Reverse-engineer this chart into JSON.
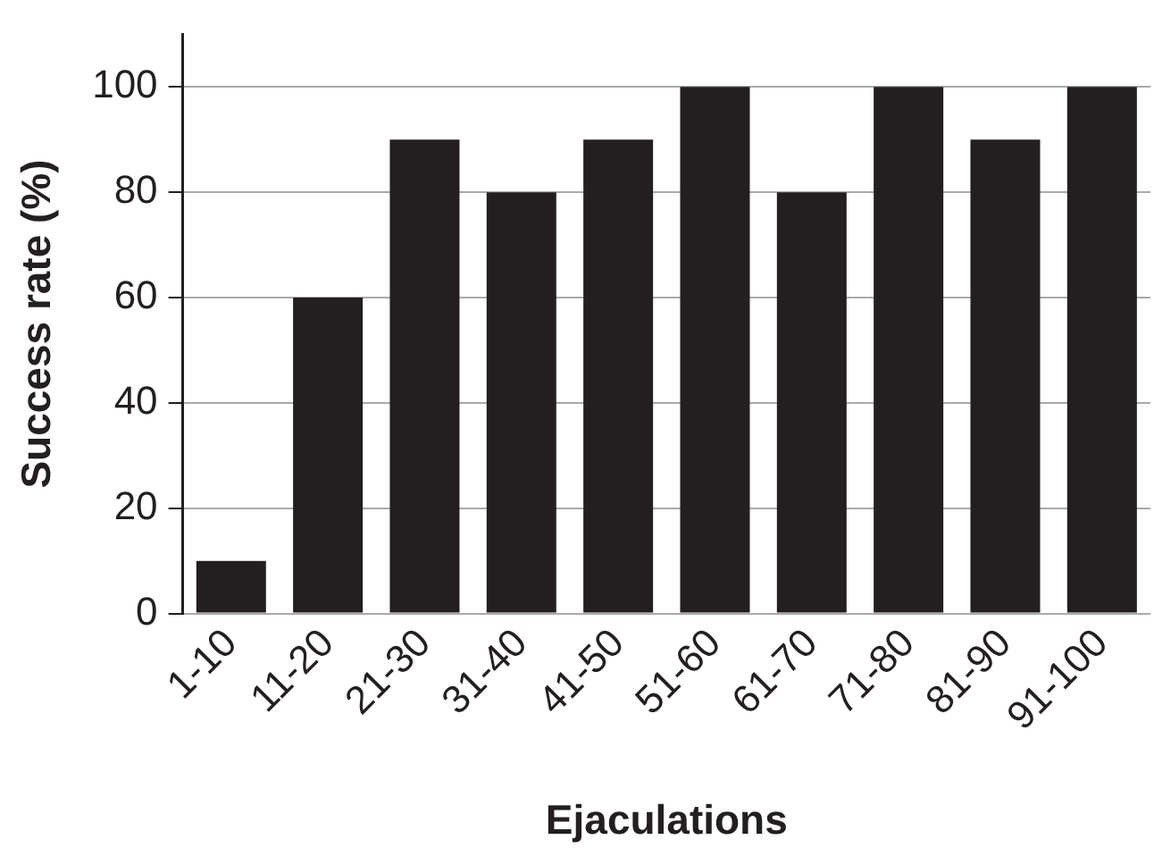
{
  "chart_data": {
    "type": "bar",
    "xlabel": "Ejaculations",
    "ylabel": "Success rate (%)",
    "categories": [
      "1-10",
      "11-20",
      "21-30",
      "31-40",
      "41-50",
      "51-60",
      "61-70",
      "71-80",
      "81-90",
      "91-100"
    ],
    "values": [
      10,
      60,
      90,
      80,
      90,
      100,
      80,
      100,
      90,
      100
    ],
    "color": "#231f20",
    "ylim": [
      0,
      110
    ],
    "yticks": [
      0,
      20,
      40,
      60,
      80,
      100
    ],
    "grid": "y"
  }
}
